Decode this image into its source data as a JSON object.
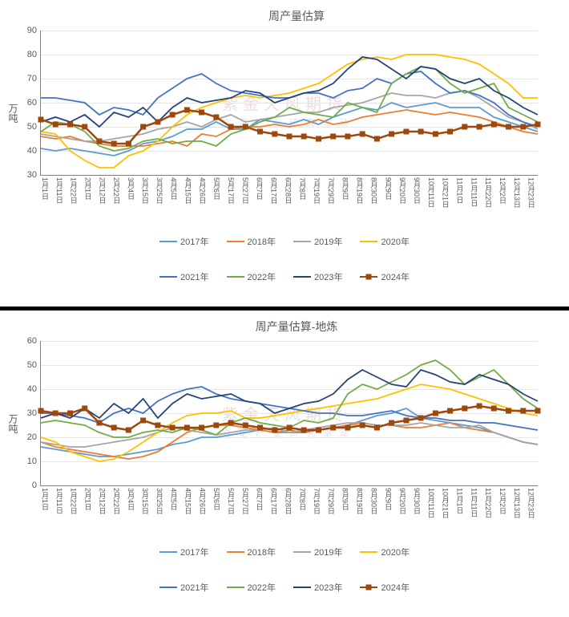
{
  "watermark": {
    "main": "紫金天风期货",
    "sub": "立足产业研究驱动"
  },
  "x_labels": [
    "1月1日",
    "1月11日",
    "1月22日",
    "2月1日",
    "2月12日",
    "2月22日",
    "3月4日",
    "3月15日",
    "3月25日",
    "4月5日",
    "4月15日",
    "4月26日",
    "5月6日",
    "5月17日",
    "5月27日",
    "6月7日",
    "6月17日",
    "6月28日",
    "7月8日",
    "7月19日",
    "7月29日",
    "8月9日",
    "8月19日",
    "8月30日",
    "9月9日",
    "9月20日",
    "9月30日",
    "10月11日",
    "10月21日",
    "11月1日",
    "11月11日",
    "11月22日",
    "12月2日",
    "12月13日",
    "12月23日"
  ],
  "chart1": {
    "title": "周产量估算",
    "y_label": "万吨",
    "ylim": [
      30,
      90
    ],
    "ytick_step": 10,
    "series": [
      {
        "name": "2017年",
        "color": "#5b9bd5",
        "width": 1.8,
        "marker": false,
        "data": [
          41,
          40,
          41,
          40,
          39,
          38,
          40,
          43,
          44,
          46,
          49,
          49,
          52,
          49,
          49,
          53,
          52,
          51,
          53,
          51,
          54,
          56,
          58,
          57,
          60,
          58,
          59,
          60,
          58,
          58,
          58,
          54,
          52,
          50,
          48
        ]
      },
      {
        "name": "2018年",
        "color": "#ed7d31",
        "width": 1.8,
        "marker": false,
        "data": [
          46,
          45,
          46,
          44,
          43,
          42,
          42,
          42,
          43,
          44,
          42,
          47,
          46,
          49,
          50,
          50,
          51,
          50,
          51,
          53,
          51,
          52,
          54,
          55,
          56,
          57,
          56,
          55,
          56,
          55,
          54,
          52,
          50,
          48,
          47
        ]
      },
      {
        "name": "2019年",
        "color": "#a5a5a5",
        "width": 1.8,
        "marker": false,
        "data": [
          47,
          46,
          45,
          44,
          44,
          45,
          46,
          47,
          49,
          50,
          52,
          50,
          53,
          55,
          52,
          53,
          54,
          55,
          56,
          56,
          58,
          59,
          60,
          62,
          64,
          63,
          63,
          62,
          64,
          65,
          62,
          58,
          54,
          52,
          49
        ]
      },
      {
        "name": "2020年",
        "color": "#ffc000",
        "width": 1.8,
        "marker": false,
        "data": [
          48,
          47,
          40,
          36,
          33,
          33,
          38,
          40,
          44,
          50,
          55,
          58,
          60,
          62,
          63,
          62,
          63,
          64,
          66,
          68,
          72,
          76,
          78,
          79,
          78,
          80,
          80,
          80,
          79,
          78,
          76,
          72,
          68,
          62,
          62
        ]
      },
      {
        "name": "2021年",
        "color": "#4472c4",
        "width": 1.8,
        "marker": false,
        "data": [
          62,
          62,
          61,
          60,
          55,
          58,
          57,
          55,
          62,
          66,
          70,
          72,
          68,
          65,
          64,
          63,
          62,
          62,
          64,
          64,
          62,
          65,
          66,
          70,
          68,
          72,
          73,
          68,
          64,
          65,
          63,
          60,
          55,
          52,
          50
        ]
      },
      {
        "name": "2022年",
        "color": "#70ad47",
        "width": 1.8,
        "marker": false,
        "data": [
          48,
          52,
          51,
          48,
          42,
          40,
          41,
          44,
          45,
          43,
          44,
          44,
          42,
          47,
          49,
          52,
          54,
          58,
          56,
          55,
          54,
          60,
          58,
          56,
          68,
          72,
          75,
          74,
          68,
          64,
          66,
          68,
          58,
          55,
          52
        ]
      },
      {
        "name": "2023年",
        "color": "#264478",
        "width": 1.8,
        "marker": false,
        "data": [
          52,
          54,
          52,
          55,
          50,
          56,
          54,
          58,
          52,
          58,
          62,
          60,
          61,
          62,
          65,
          64,
          60,
          62,
          64,
          65,
          68,
          74,
          79,
          78,
          74,
          70,
          75,
          74,
          70,
          68,
          70,
          65,
          62,
          58,
          55
        ]
      },
      {
        "name": "2024年",
        "color": "#9e480e",
        "width": 2.5,
        "marker": true,
        "data": [
          53,
          51,
          51,
          50,
          44,
          43,
          43,
          50,
          52,
          55,
          57,
          56,
          54,
          50,
          50,
          48,
          47,
          46,
          46,
          45,
          46,
          46,
          47,
          45,
          47,
          48,
          48,
          47,
          48,
          50,
          50,
          51,
          50,
          50,
          51
        ]
      }
    ]
  },
  "chart2": {
    "title": "周产量估算-地炼",
    "y_label": "万吨",
    "ylim": [
      0,
      60
    ],
    "ytick_step": 10,
    "series": [
      {
        "name": "2017年",
        "color": "#5b9bd5",
        "width": 1.8,
        "marker": false,
        "data": [
          16,
          15,
          14,
          13,
          12,
          12,
          13,
          14,
          15,
          17,
          18,
          20,
          20,
          21,
          22,
          23,
          22,
          22,
          22,
          23,
          24,
          25,
          27,
          29,
          30,
          32,
          28,
          27,
          26,
          25,
          24,
          22,
          20,
          18,
          17
        ]
      },
      {
        "name": "2018年",
        "color": "#ed7d31",
        "width": 1.8,
        "marker": false,
        "data": [
          18,
          16,
          15,
          14,
          13,
          12,
          11,
          12,
          14,
          18,
          22,
          24,
          25,
          25,
          24,
          23,
          22,
          23,
          22,
          23,
          24,
          25,
          26,
          25,
          25,
          24,
          24,
          25,
          26,
          24,
          23,
          22,
          20,
          18,
          17
        ]
      },
      {
        "name": "2019年",
        "color": "#a5a5a5",
        "width": 1.8,
        "marker": false,
        "data": [
          18,
          17,
          16,
          16,
          17,
          18,
          19,
          20,
          22,
          24,
          23,
          22,
          21,
          22,
          23,
          23,
          24,
          22,
          23,
          24,
          25,
          26,
          26,
          25,
          25,
          25,
          26,
          25,
          24,
          24,
          25,
          22,
          20,
          18,
          17
        ]
      },
      {
        "name": "2020年",
        "color": "#ffc000",
        "width": 1.8,
        "marker": false,
        "data": [
          20,
          18,
          14,
          12,
          10,
          11,
          14,
          18,
          22,
          26,
          29,
          30,
          30,
          31,
          28,
          28,
          29,
          30,
          31,
          32,
          33,
          34,
          35,
          36,
          38,
          40,
          42,
          41,
          40,
          38,
          36,
          34,
          32,
          30,
          29
        ]
      },
      {
        "name": "2021年",
        "color": "#4472c4",
        "width": 1.8,
        "marker": false,
        "data": [
          30,
          30,
          29,
          28,
          26,
          30,
          32,
          30,
          35,
          38,
          40,
          41,
          38,
          36,
          35,
          34,
          33,
          32,
          31,
          30,
          30,
          29,
          29,
          30,
          31,
          29,
          28,
          28,
          27,
          27,
          26,
          26,
          25,
          24,
          23
        ]
      },
      {
        "name": "2022年",
        "color": "#70ad47",
        "width": 1.8,
        "marker": false,
        "data": [
          26,
          27,
          26,
          25,
          22,
          20,
          20,
          22,
          23,
          22,
          24,
          23,
          21,
          26,
          28,
          26,
          25,
          24,
          27,
          26,
          28,
          38,
          42,
          40,
          43,
          46,
          50,
          52,
          48,
          42,
          45,
          48,
          42,
          36,
          32
        ]
      },
      {
        "name": "2023年",
        "color": "#264478",
        "width": 1.8,
        "marker": false,
        "data": [
          28,
          30,
          28,
          32,
          28,
          34,
          30,
          36,
          28,
          34,
          38,
          36,
          37,
          38,
          35,
          34,
          30,
          32,
          34,
          35,
          38,
          44,
          48,
          45,
          42,
          41,
          48,
          46,
          43,
          42,
          46,
          44,
          42,
          38,
          35
        ]
      },
      {
        "name": "2024年",
        "color": "#9e480e",
        "width": 2.5,
        "marker": true,
        "data": [
          31,
          30,
          30,
          32,
          26,
          24,
          23,
          27,
          25,
          24,
          24,
          24,
          25,
          26,
          25,
          24,
          23,
          24,
          23,
          23,
          24,
          24,
          25,
          24,
          26,
          27,
          28,
          30,
          31,
          32,
          33,
          32,
          31,
          31,
          31
        ]
      }
    ]
  },
  "legend_layout": [
    [
      "2017年",
      "2018年",
      "2019年",
      "2020年"
    ],
    [
      "2021年",
      "2022年",
      "2023年",
      "2024年"
    ]
  ]
}
